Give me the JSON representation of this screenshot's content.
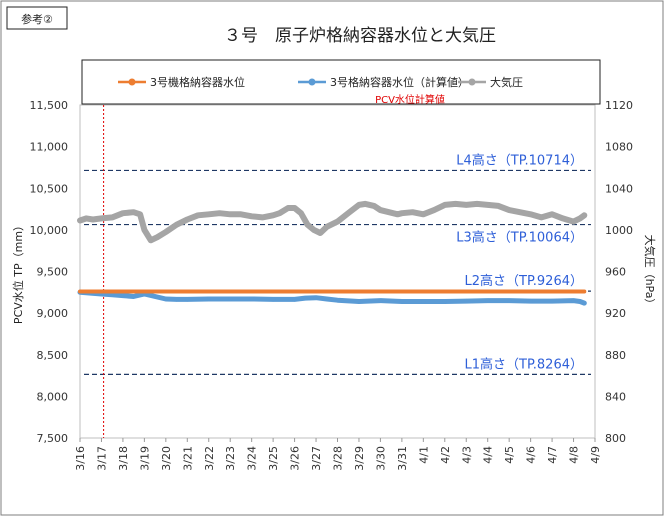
{
  "badge": "参考②",
  "chart_data": {
    "type": "line",
    "title": "３号　原子炉格納容器水位と大気圧",
    "ylabel": "PCV水位 TP（mm）",
    "y2label": "大気圧（hPa）",
    "ylim": [
      7500,
      11500
    ],
    "y2lim": [
      800,
      1120
    ],
    "yticks": [
      "7,500",
      "8,000",
      "8,500",
      "9,000",
      "9,500",
      "10,000",
      "10,500",
      "11,000",
      "11,500"
    ],
    "y2ticks": [
      "800",
      "840",
      "880",
      "920",
      "960",
      "1000",
      "1040",
      "1080",
      "1120"
    ],
    "categories": [
      "3/16",
      "3/17",
      "3/18",
      "3/19",
      "3/20",
      "3/21",
      "3/22",
      "3/23",
      "3/24",
      "3/25",
      "3/26",
      "3/27",
      "3/28",
      "3/29",
      "3/30",
      "3/31",
      "4/1",
      "4/2",
      "4/3",
      "4/4",
      "4/5",
      "4/6",
      "4/7",
      "4/8",
      "4/9"
    ],
    "legend_position": "top",
    "series": [
      {
        "name": "3号機格納容器水位",
        "color": "#ED7D31",
        "axis": "left",
        "x": [
          0,
          23.5
        ],
        "values": [
          9260,
          9260
        ]
      },
      {
        "name": "3号格納容器水位（計算値）",
        "color": "#5B9BD5",
        "axis": "left",
        "x": [
          0,
          0.5,
          1,
          1.5,
          2,
          2.5,
          3,
          3.5,
          4,
          4.5,
          5,
          6,
          7,
          8,
          9,
          10,
          10.5,
          11,
          11.5,
          12,
          13,
          14,
          15,
          16,
          17,
          18,
          19,
          20,
          21,
          22,
          23,
          23.3,
          23.5
        ],
        "values": [
          9250,
          9240,
          9230,
          9220,
          9210,
          9200,
          9230,
          9200,
          9170,
          9165,
          9165,
          9170,
          9170,
          9170,
          9165,
          9165,
          9180,
          9185,
          9170,
          9155,
          9140,
          9150,
          9140,
          9140,
          9140,
          9145,
          9150,
          9150,
          9145,
          9145,
          9150,
          9140,
          9120
        ]
      },
      {
        "name": "大気圧",
        "color": "#A5A5A5",
        "axis": "right",
        "x": [
          0,
          0.3,
          0.6,
          1,
          1.5,
          2,
          2.5,
          2.8,
          3,
          3.3,
          3.6,
          4,
          4.5,
          5,
          5.5,
          6,
          6.5,
          7,
          7.5,
          8,
          8.5,
          9,
          9.3,
          9.7,
          10,
          10.3,
          10.6,
          10.9,
          11.2,
          11.5,
          12,
          12.5,
          13,
          13.3,
          13.7,
          14,
          14.4,
          14.8,
          15,
          15.5,
          16,
          16.5,
          17,
          17.5,
          18,
          18.5,
          19,
          19.5,
          20,
          20.5,
          21,
          21.5,
          22,
          22.5,
          23,
          23.3,
          23.5
        ],
        "values": [
          1009,
          1011,
          1010,
          1011,
          1012,
          1016,
          1017,
          1015,
          1000,
          990,
          993,
          998,
          1005,
          1010,
          1014,
          1015,
          1016,
          1015,
          1015,
          1013,
          1012,
          1014,
          1016,
          1021,
          1021,
          1016,
          1005,
          1000,
          997,
          1003,
          1008,
          1016,
          1024,
          1025,
          1023,
          1019,
          1017,
          1015,
          1016,
          1017,
          1015,
          1019,
          1024,
          1025,
          1024,
          1025,
          1024,
          1023,
          1019,
          1017,
          1015,
          1012,
          1015,
          1011,
          1008,
          1011,
          1014
        ]
      }
    ],
    "reference_lines": [
      {
        "label": "L4高さ（TP.10714）",
        "value": 10714
      },
      {
        "label": "L3高さ（TP.10064）",
        "value": 10064
      },
      {
        "label": "L2高さ（TP.9264）",
        "value": 9264
      },
      {
        "label": "L1高さ（TP.8264）",
        "value": 8264
      }
    ],
    "annotation": {
      "label": "PCV水位計算値",
      "x": 1.1,
      "color": "#E00000"
    }
  }
}
